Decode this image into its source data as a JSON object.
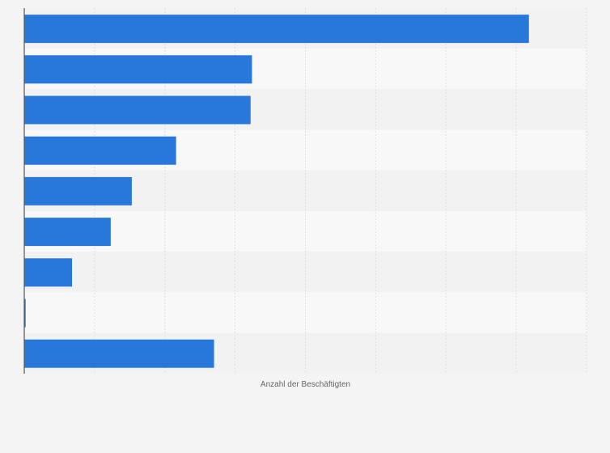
{
  "colors": {
    "background": "#f4f4f4",
    "band_dark": "#f2f2f2",
    "band_light": "#f8f8f8",
    "bar": "#2878dc",
    "gridline": "#dedede",
    "axis": "#555555",
    "label": "#666666"
  },
  "chart_data": {
    "type": "bar",
    "orientation": "horizontal",
    "xlabel": "Anzahl der Beschäftigten",
    "xlim": [
      0,
      8
    ],
    "grid": true,
    "series": [
      {
        "values": [
          7.18,
          3.24,
          3.22,
          2.16,
          1.53,
          1.23,
          0.68,
          0.02,
          2.7
        ]
      }
    ]
  }
}
